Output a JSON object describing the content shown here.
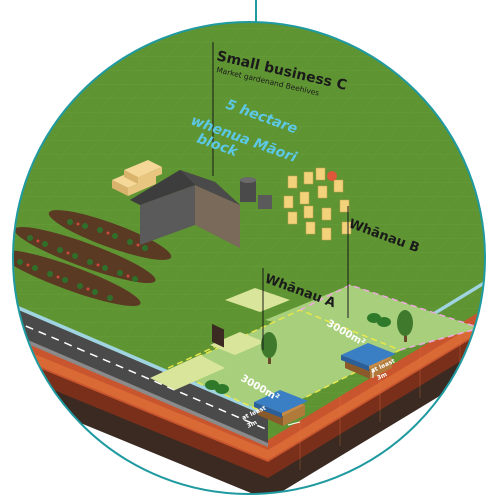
{
  "labels": {
    "business_title": "Small business C",
    "business_subtitle": "Market gardenand Beehives",
    "block_line1": "5 hectare",
    "block_line2": "whenua Māori",
    "block_line3": "block",
    "whanau_b": "Whānau B",
    "whanau_a": "Whānau A",
    "area_a": "3000m²",
    "area_b": "3000m²",
    "setback_a_line1": "at least",
    "setback_a_line2": "3m",
    "setback_b_line1": "at least",
    "setback_b_line2": "3m"
  },
  "colors": {
    "grass": "#5f9433",
    "grass_grid": "#6fa03e",
    "plot": "#a8cf7c",
    "path": "#d9e59a",
    "road": "#4a4a4a",
    "road_edge": "#9a9a9a",
    "soil_top": "#c8552e",
    "soil_mid": "#7a2f1a",
    "circle_border": "#1f9aa0",
    "label_blue": "#5cc8e6",
    "house_roof": "#3a7fc4",
    "shed_roof": "#3d3d3d"
  }
}
